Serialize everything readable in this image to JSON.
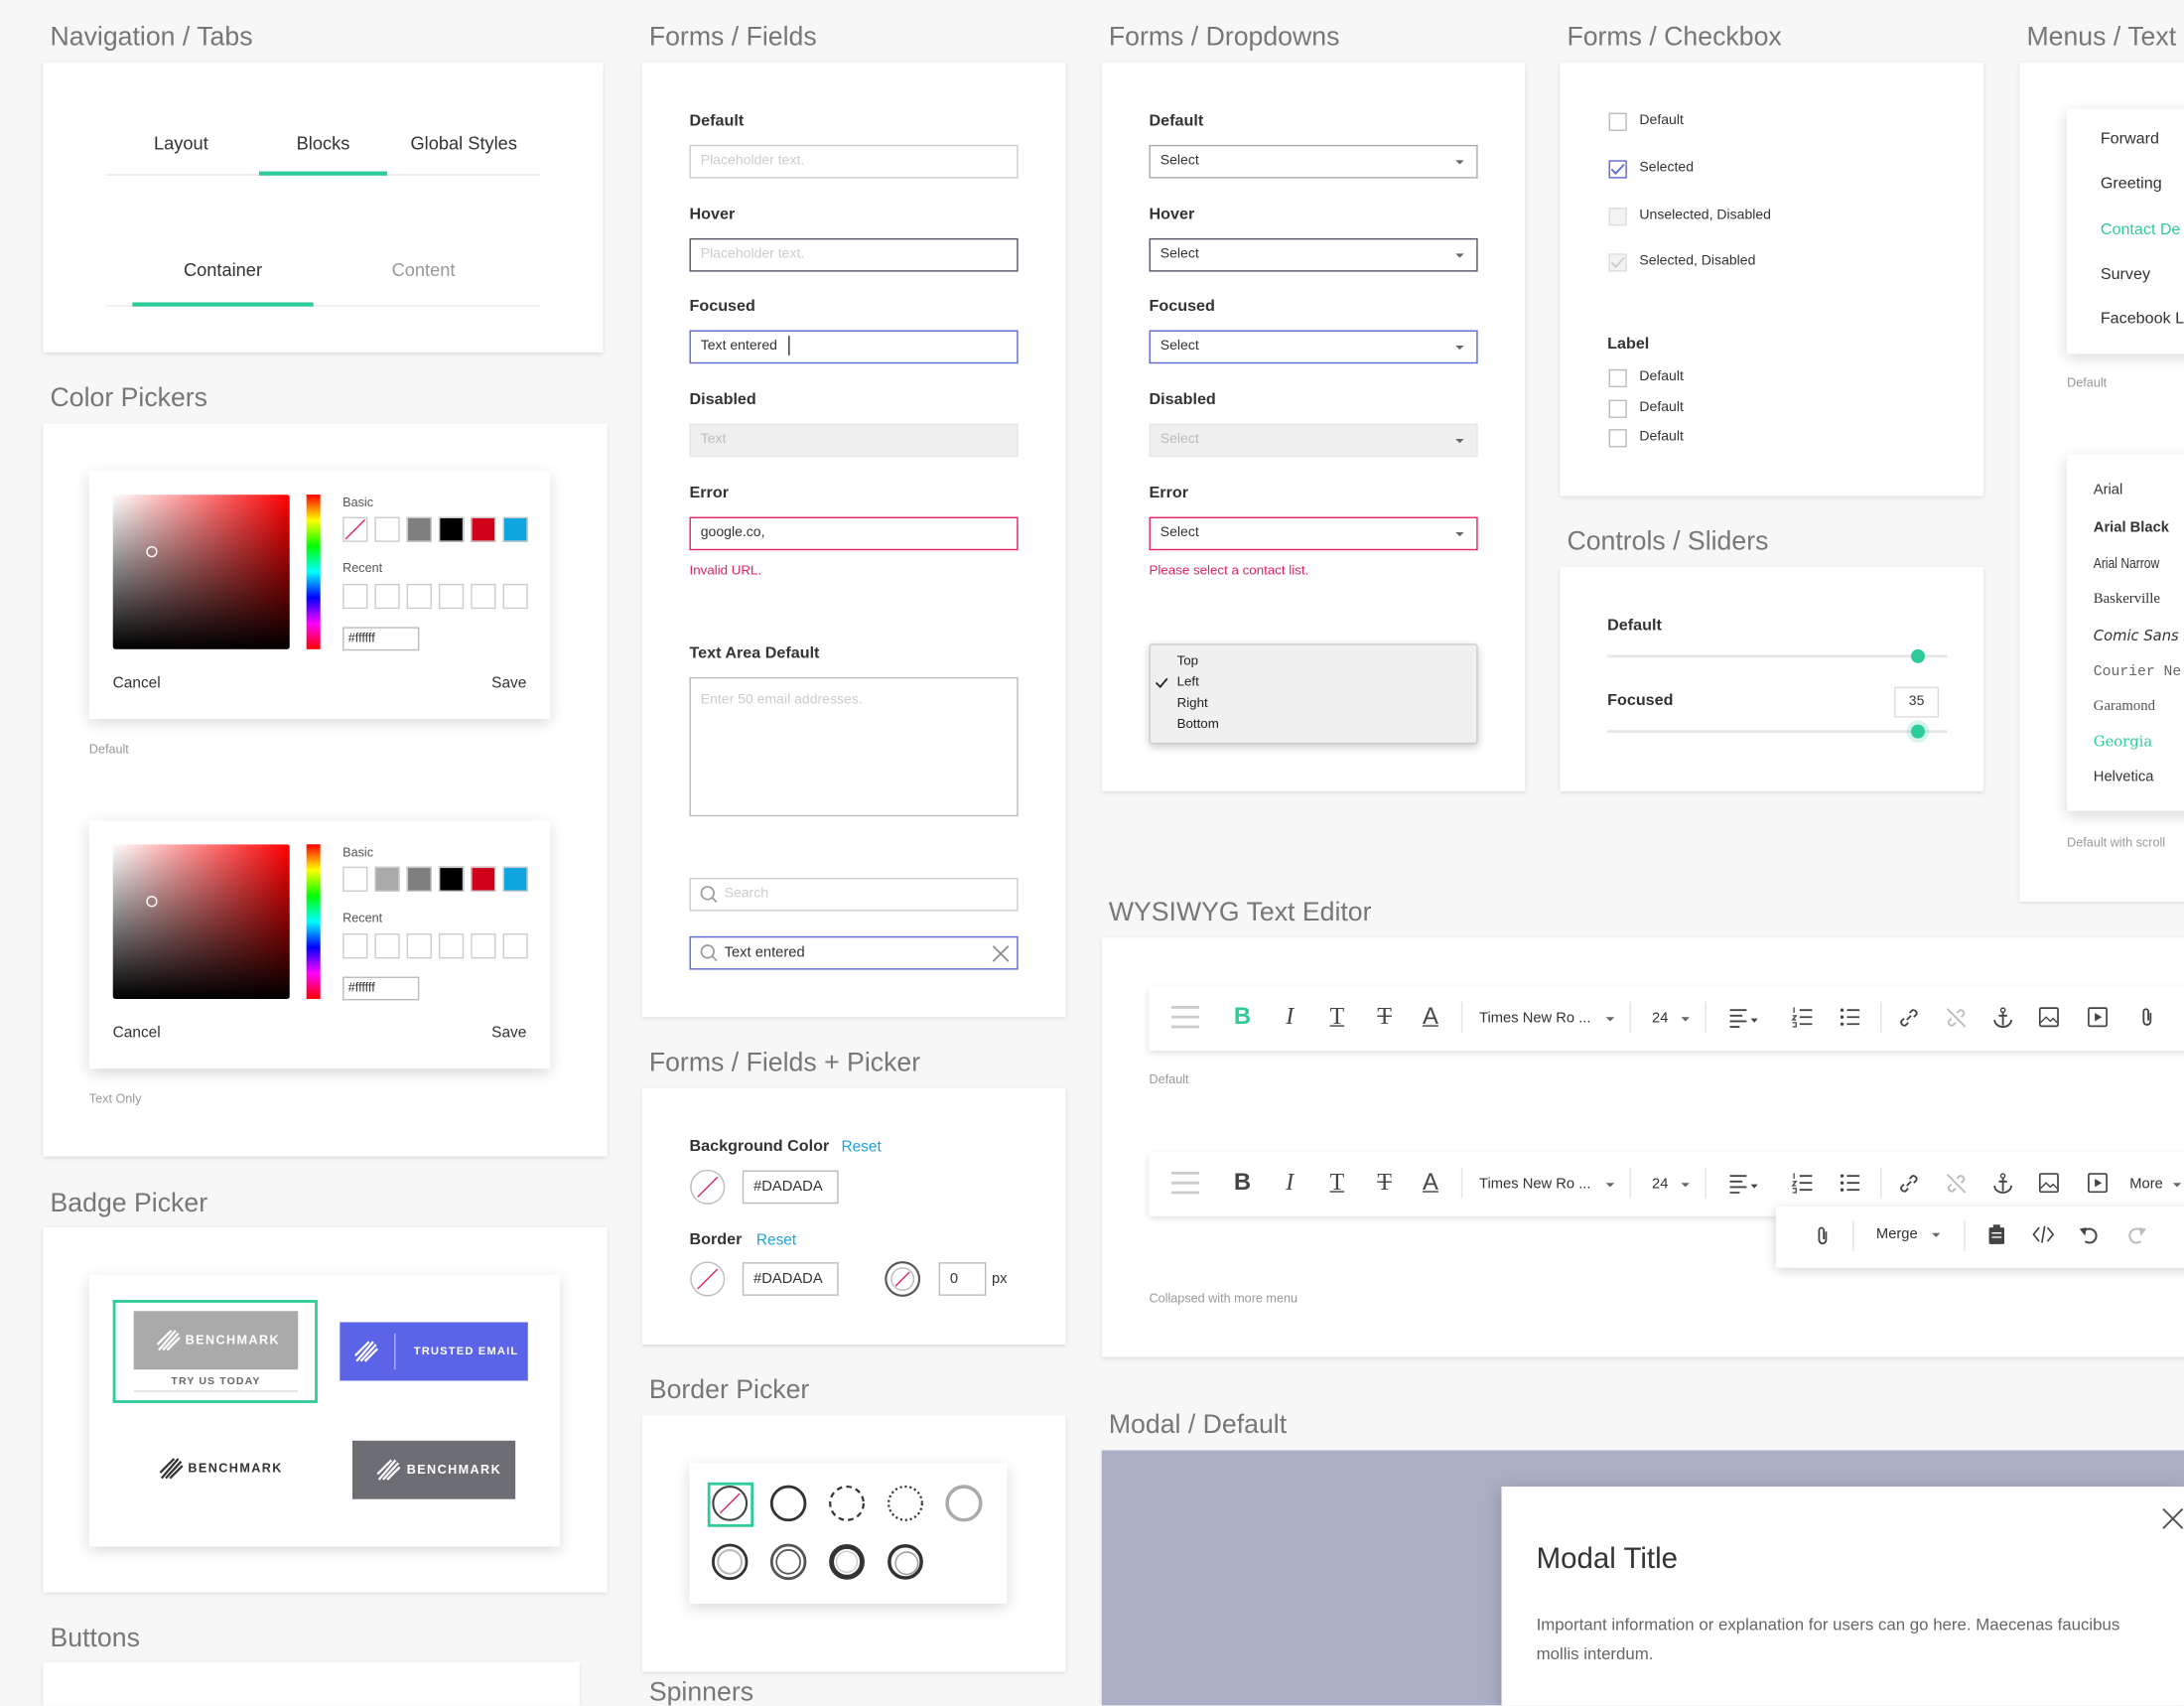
{
  "sections": [
    "Navigation / Tabs",
    "Forms / Fields",
    "Forms / Dropdowns",
    "Forms / Checkbox",
    "Menus / Text",
    "Color Pickers",
    "Controls / Sliders",
    "Forms / Fields + Picker",
    "WYSIWYG Text Editor",
    "Badge Picker",
    "Border Picker",
    "Modal / Default",
    "Buttons",
    "Spinners"
  ],
  "nav_tabs": {
    "primary": [
      "Layout",
      "Blocks",
      "Global Styles"
    ],
    "secondary": [
      "Container",
      "Content"
    ]
  },
  "color_pickers": {
    "basic": "Basic",
    "recent": "Recent",
    "hex": "#ffffff",
    "cancel": "Cancel",
    "save": "Save",
    "captions": [
      "Default",
      "Text Only"
    ]
  },
  "fields": {
    "items": [
      {
        "label": "Default",
        "text": "Placeholder text."
      },
      {
        "label": "Hover",
        "text": "Placeholder text."
      },
      {
        "label": "Focused",
        "text": "Text entered"
      },
      {
        "label": "Disabled",
        "text": "Text"
      },
      {
        "label": "Error",
        "text": "google.co,"
      }
    ],
    "error_message": "Invalid URL.",
    "textarea": {
      "label": "Text Area Default",
      "placeholder": "Enter 50 email addresses."
    },
    "search": "Search",
    "search_entered": "Text entered"
  },
  "dropdowns": {
    "items": [
      {
        "label": "Default",
        "text": "Select"
      },
      {
        "label": "Hover",
        "text": "Select"
      },
      {
        "label": "Focused",
        "text": "Select"
      },
      {
        "label": "Disabled",
        "text": "Select"
      },
      {
        "label": "Error",
        "text": "Select"
      }
    ],
    "error_message": "Please select a contact list.",
    "menu_options": [
      "Top",
      "Left",
      "Right",
      "Bottom"
    ]
  },
  "checkbox": {
    "items": [
      "Default",
      "Selected",
      "Unselected, Disabled",
      "Selected, Disabled"
    ],
    "group_label": "Label",
    "group_items": [
      "Default",
      "Default",
      "Default"
    ]
  },
  "menus": {
    "items": [
      "Forward",
      "Greeting",
      "Contact De",
      "Survey",
      "Facebook L"
    ],
    "caption": "Default",
    "fonts": [
      "Arial",
      "Arial Black",
      "Arial Narrow",
      "Baskerville",
      "Comic Sans M",
      "Courier Ne",
      "Garamond",
      "Georgia",
      "Helvetica"
    ],
    "fonts_caption": "Default with scroll"
  },
  "sliders": {
    "default_label": "Default",
    "focused_label": "Focused",
    "focused_value": 35
  },
  "fields_picker": {
    "background_label": "Background Color",
    "background_reset": "Reset",
    "background_value": "#DADADA",
    "border_label": "Border",
    "border_reset": "Reset",
    "border_value": "#DADADA",
    "border_width": 0,
    "border_unit": "px"
  },
  "wysiwyg": {
    "glyphs": [
      "B",
      "I",
      "T",
      "T",
      "A"
    ],
    "font": "Times New Ro ...",
    "size": 24,
    "default_caption": "Default",
    "more": "More",
    "merge": "Merge",
    "collapsed_caption": "Collapsed with more menu"
  },
  "badges": {
    "brand": "BENCHMARK",
    "cta": "TRY US TODAY",
    "trusted": "TRUSTED EMAIL"
  },
  "modal": {
    "title": "Modal Title",
    "body": "Important information or explanation for users can go here. Maecenas faucibus mollis interdum."
  }
}
